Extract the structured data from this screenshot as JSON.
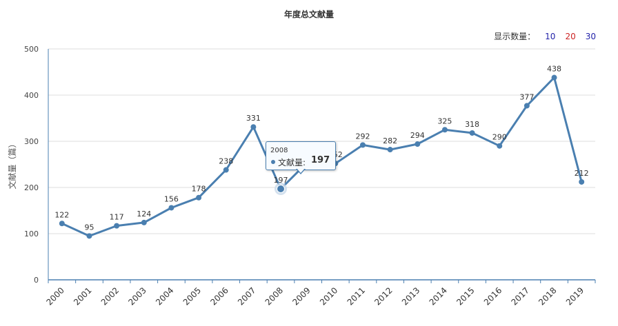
{
  "chart_data": {
    "type": "line",
    "title": "年度总文献量",
    "xlabel": "",
    "ylabel": "文献量（篇）",
    "categories": [
      "2000",
      "2001",
      "2002",
      "2003",
      "2004",
      "2005",
      "2006",
      "2007",
      "2008",
      "2009",
      "2010",
      "2011",
      "2012",
      "2013",
      "2014",
      "2015",
      "2016",
      "2017",
      "2018",
      "2019"
    ],
    "series": [
      {
        "name": "文献量",
        "values": [
          122,
          95,
          117,
          124,
          156,
          178,
          238,
          331,
          197,
          256,
          252,
          292,
          282,
          294,
          325,
          318,
          290,
          377,
          438,
          212
        ]
      }
    ],
    "ylim": [
      0,
      500
    ],
    "yticks": [
      0,
      100,
      200,
      300,
      400,
      500
    ],
    "grid": true,
    "color": "#4a7fb0"
  },
  "count_selector": {
    "label": "显示数量：",
    "options": [
      {
        "text": "10",
        "color": "#1f1fa8"
      },
      {
        "text": "20",
        "color": "#cc2222"
      },
      {
        "text": "30",
        "color": "#1f1fa8"
      }
    ]
  },
  "tooltip": {
    "year": "2008",
    "name": "文献量:",
    "value": "197"
  }
}
